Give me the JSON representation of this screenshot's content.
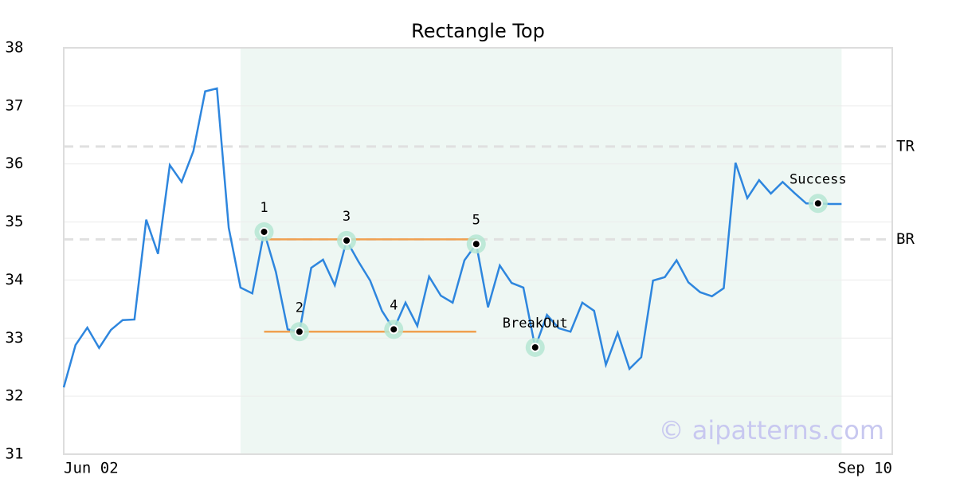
{
  "chart_data": {
    "type": "line",
    "title": "Rectangle Top",
    "watermark": "© aipatterns.com",
    "x": [
      0,
      1,
      2,
      3,
      4,
      5,
      6,
      7,
      8,
      9,
      10,
      11,
      12,
      13,
      14,
      15,
      16,
      17,
      18,
      19,
      20,
      21,
      22,
      23,
      24,
      25,
      26,
      27,
      28,
      29,
      30,
      31,
      32,
      33,
      34,
      35,
      36,
      37,
      38,
      39,
      40,
      41,
      42,
      43,
      44,
      45,
      46,
      47,
      48,
      49,
      50,
      51,
      52,
      53,
      54,
      55,
      56,
      57,
      58,
      59,
      60,
      61,
      62,
      63,
      64,
      65,
      66
    ],
    "values": [
      32.15,
      32.88,
      33.18,
      32.83,
      33.14,
      33.31,
      33.32,
      35.04,
      34.45,
      35.98,
      35.69,
      36.22,
      37.25,
      37.3,
      34.9,
      33.87,
      33.77,
      34.83,
      34.14,
      33.15,
      33.11,
      34.21,
      34.35,
      33.91,
      34.68,
      34.32,
      33.99,
      33.47,
      33.15,
      33.61,
      33.21,
      34.06,
      33.73,
      33.61,
      34.34,
      34.62,
      33.53,
      34.25,
      33.95,
      33.87,
      32.84,
      33.4,
      33.17,
      33.11,
      33.61,
      33.47,
      32.54,
      33.09,
      32.47,
      32.67,
      33.99,
      34.05,
      34.34,
      33.96,
      33.79,
      33.72,
      33.86,
      36.02,
      35.41,
      35.72,
      35.49,
      35.69,
      35.5,
      35.32,
      35.32,
      35.31,
      35.31
    ],
    "color": "#2e86de",
    "xlim": [
      0,
      70.3
    ],
    "xticks": [
      {
        "value": 0,
        "label": "Jun 02"
      },
      {
        "value": 70.3,
        "label": "Sep 10"
      }
    ],
    "ylim": [
      31,
      38
    ],
    "yticks": [
      31,
      32,
      33,
      34,
      35,
      36,
      37,
      38
    ],
    "grid": true,
    "shaded_region": {
      "x": [
        15,
        66
      ],
      "color": "#eef7f3"
    },
    "reference_lines": [
      {
        "label": "TR",
        "value": 36.3
      },
      {
        "label": "BR",
        "value": 34.7
      }
    ],
    "pattern_lines": [
      {
        "x": [
          17,
          35
        ],
        "y": 34.7
      },
      {
        "x": [
          17,
          35
        ],
        "y": 33.11
      }
    ],
    "pattern_color": "#f0a050",
    "annotations": [
      {
        "label": "1",
        "x": 17,
        "y": 34.83
      },
      {
        "label": "2",
        "x": 20,
        "y": 33.11
      },
      {
        "label": "3",
        "x": 24,
        "y": 34.68
      },
      {
        "label": "4",
        "x": 28,
        "y": 33.15
      },
      {
        "label": "5",
        "x": 35,
        "y": 34.62
      },
      {
        "label": "BreakOut",
        "x": 40,
        "y": 32.84
      },
      {
        "label": "Success",
        "x": 64,
        "y": 35.32
      }
    ]
  }
}
